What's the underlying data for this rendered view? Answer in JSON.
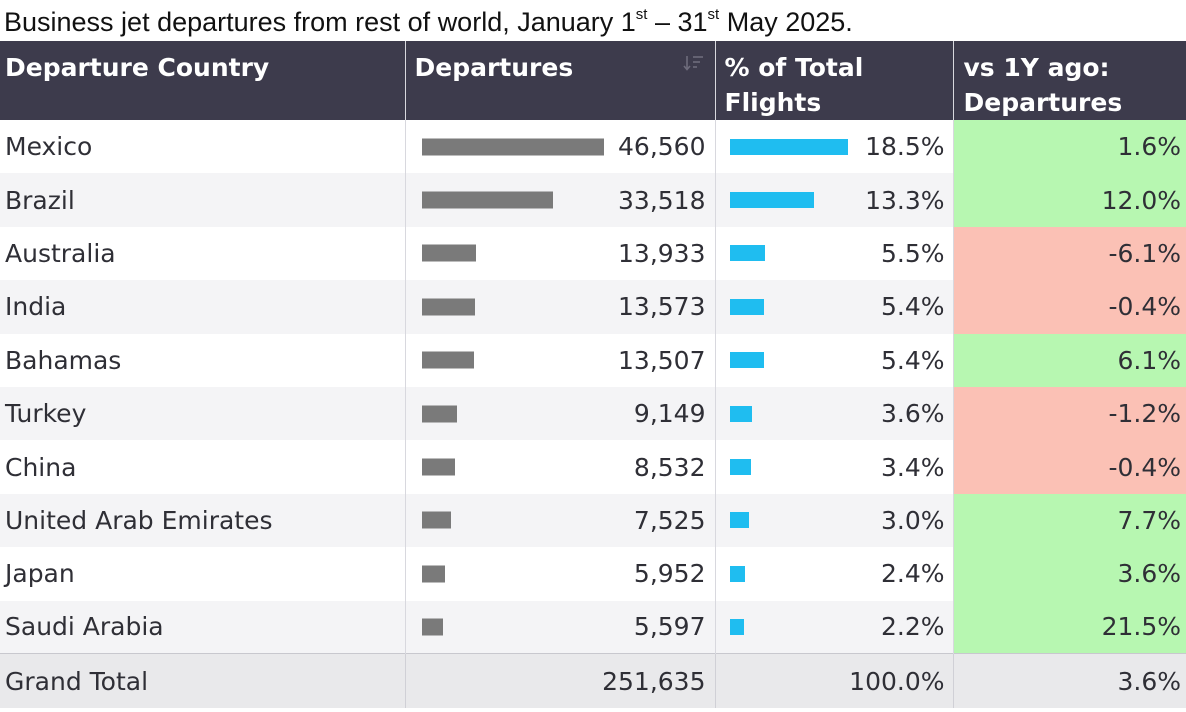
{
  "title": {
    "prefix": "Business jet departures from rest of world, January 1",
    "sup1": "st",
    "middle": " – 31",
    "sup2": "st",
    "suffix": " May 2025."
  },
  "header": {
    "country": "Departure Country",
    "departures": "Departures",
    "pct_line1": "% of Total",
    "pct_line2": "Flights",
    "change_line1": "vs 1Y ago:",
    "change_line2": "Departures"
  },
  "colors": {
    "header_bg": "#3d3b4c",
    "departures_bar": "#7a7a7a",
    "pct_bar": "#1fbdf0",
    "positive_bg": "#b7f7b1",
    "negative_bg": "#fbc1b5"
  },
  "scale": {
    "departures_max": 46560,
    "pct_max": 18.5
  },
  "rows": [
    {
      "country": "Mexico",
      "departures": 46560,
      "departures_label": "46,560",
      "pct": 18.5,
      "pct_label": "18.5%",
      "change": 1.6,
      "change_label": "1.6%"
    },
    {
      "country": "Brazil",
      "departures": 33518,
      "departures_label": "33,518",
      "pct": 13.3,
      "pct_label": "13.3%",
      "change": 12.0,
      "change_label": "12.0%"
    },
    {
      "country": "Australia",
      "departures": 13933,
      "departures_label": "13,933",
      "pct": 5.5,
      "pct_label": "5.5%",
      "change": -6.1,
      "change_label": "-6.1%"
    },
    {
      "country": "India",
      "departures": 13573,
      "departures_label": "13,573",
      "pct": 5.4,
      "pct_label": "5.4%",
      "change": -0.4,
      "change_label": "-0.4%"
    },
    {
      "country": "Bahamas",
      "departures": 13507,
      "departures_label": "13,507",
      "pct": 5.4,
      "pct_label": "5.4%",
      "change": 6.1,
      "change_label": "6.1%"
    },
    {
      "country": "Turkey",
      "departures": 9149,
      "departures_label": "9,149",
      "pct": 3.6,
      "pct_label": "3.6%",
      "change": -1.2,
      "change_label": "-1.2%"
    },
    {
      "country": "China",
      "departures": 8532,
      "departures_label": "8,532",
      "pct": 3.4,
      "pct_label": "3.4%",
      "change": -0.4,
      "change_label": "-0.4%"
    },
    {
      "country": "United Arab Emirates",
      "departures": 7525,
      "departures_label": "7,525",
      "pct": 3.0,
      "pct_label": "3.0%",
      "change": 7.7,
      "change_label": "7.7%"
    },
    {
      "country": "Japan",
      "departures": 5952,
      "departures_label": "5,952",
      "pct": 2.4,
      "pct_label": "2.4%",
      "change": 3.6,
      "change_label": "3.6%"
    },
    {
      "country": "Saudi Arabia",
      "departures": 5597,
      "departures_label": "5,597",
      "pct": 2.2,
      "pct_label": "2.2%",
      "change": 21.5,
      "change_label": "21.5%"
    }
  ],
  "total": {
    "label": "Grand Total",
    "departures_label": "251,635",
    "pct_label": "100.0%",
    "change_label": "3.6%"
  }
}
